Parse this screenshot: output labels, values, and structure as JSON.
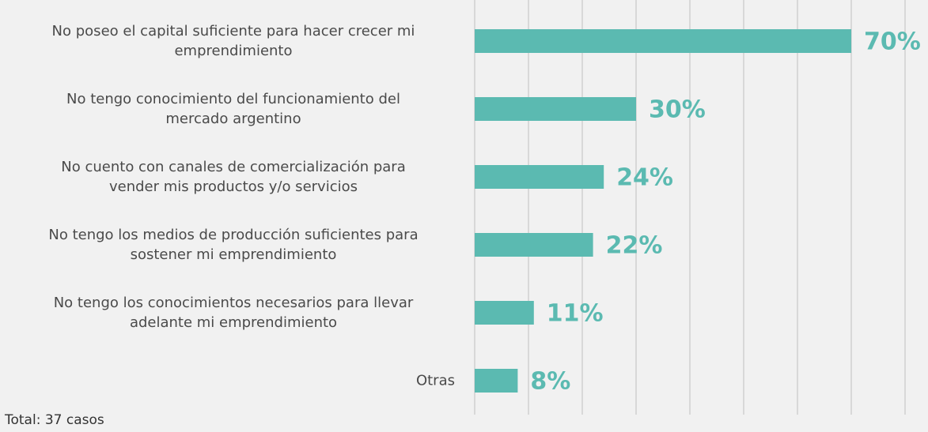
{
  "chart_data": {
    "type": "bar",
    "orientation": "horizontal",
    "categories": [
      "No poseo el capital suficiente para hacer crecer mi\nemprendimiento",
      "No tengo conocimiento del funcionamiento del\nmercado argentino",
      "No cuento con canales de comercialización para\nvender mis productos y/o servicios",
      "No tengo los medios de producción suficientes para\nsostener mi emprendimiento",
      "No tengo los conocimientos necesarios para llevar\nadelante mi emprendimiento",
      "Otras"
    ],
    "values": [
      70,
      30,
      24,
      22,
      11,
      8
    ],
    "value_labels": [
      "70%",
      "30%",
      "24%",
      "22%",
      "11%",
      "8%"
    ],
    "color": "#5bbab1",
    "xlim": [
      0,
      80
    ],
    "xticks": [
      0,
      10,
      20,
      30,
      40,
      50,
      60,
      70,
      80
    ],
    "grid": true,
    "footnote": "Total: 37 casos"
  }
}
